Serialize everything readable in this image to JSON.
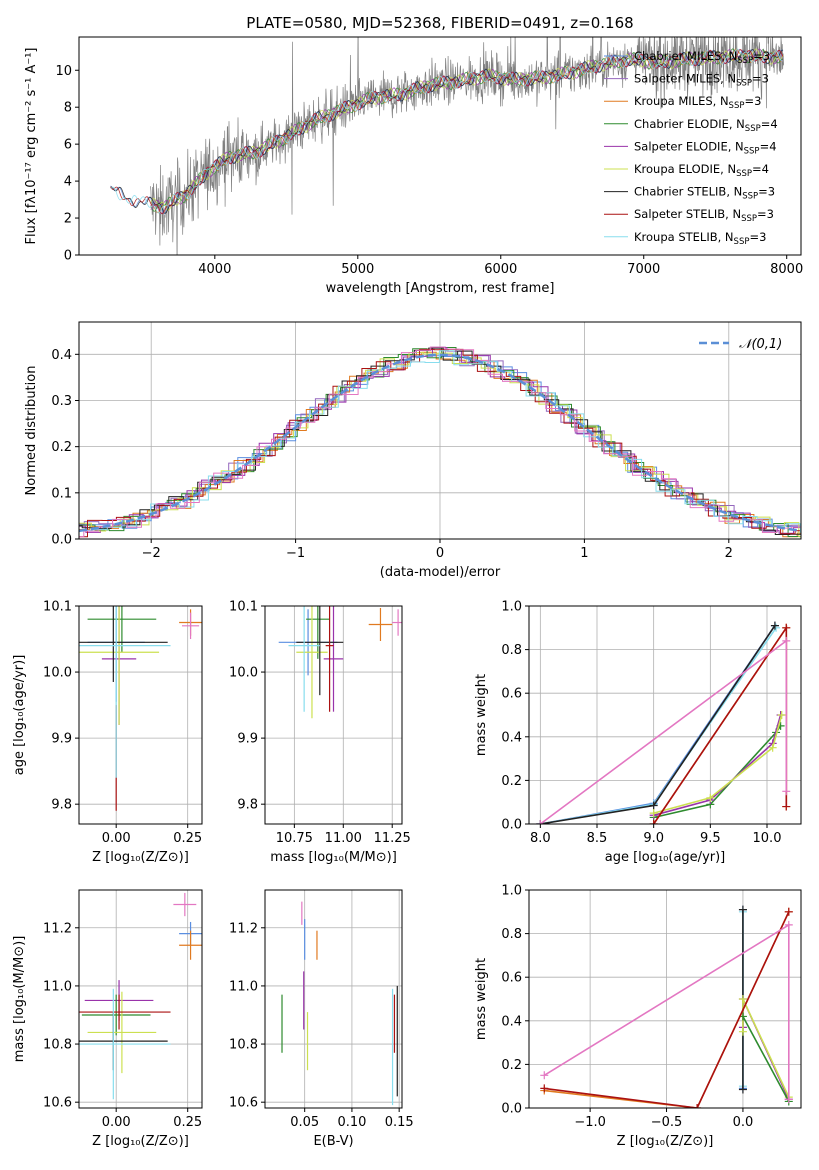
{
  "colors": {
    "chabrier_miles": "#5a8ee0",
    "salpeter_miles": "#9467bd",
    "kroupa_miles": "#e07a20",
    "chabrier_elodie": "#2e8b2e",
    "salpeter_elodie": "#9933aa",
    "kroupa_elodie": "#cce050",
    "chabrier_stelib": "#222222",
    "salpeter_stelib": "#aa1111",
    "kroupa_stelib": "#88ddee",
    "pink": "#e377c2",
    "data": "#808080",
    "normal": "#5b8fd6"
  },
  "legend_spectrum": [
    {
      "name": "Chabrier MILES, N",
      "sub": "SSP",
      "post": "=3",
      "color_key": "chabrier_miles"
    },
    {
      "name": "Salpeter MILES, N",
      "sub": "SSP",
      "post": "=3",
      "color_key": "salpeter_miles"
    },
    {
      "name": "Kroupa MILES, N",
      "sub": "SSP",
      "post": "=3",
      "color_key": "kroupa_miles"
    },
    {
      "name": "Chabrier ELODIE, N",
      "sub": "SSP",
      "post": "=4",
      "color_key": "chabrier_elodie"
    },
    {
      "name": "Salpeter ELODIE, N",
      "sub": "SSP",
      "post": "=4",
      "color_key": "salpeter_elodie"
    },
    {
      "name": "Kroupa ELODIE, N",
      "sub": "SSP",
      "post": "=4",
      "color_key": "kroupa_elodie"
    },
    {
      "name": "Chabrier STELIB, N",
      "sub": "SSP",
      "post": "=3",
      "color_key": "chabrier_stelib"
    },
    {
      "name": "Salpeter STELIB, N",
      "sub": "SSP",
      "post": "=3",
      "color_key": "salpeter_stelib"
    },
    {
      "name": "Kroupa STELIB, N",
      "sub": "SSP",
      "post": "=3",
      "color_key": "kroupa_stelib"
    }
  ],
  "chart_data": [
    {
      "id": "spectrum",
      "type": "line",
      "title": "PLATE=0580, MJD=52368, FIBERID=0491, z=0.168",
      "xlabel": "wavelength [Angstrom, rest frame]",
      "ylabel": "Flux [fλ10⁻¹⁷ erg cm⁻² s⁻¹ A⁻¹]",
      "xlim": [
        3050,
        8100
      ],
      "ylim": [
        0,
        11.8
      ],
      "xticks": [
        4000,
        5000,
        6000,
        7000,
        8000
      ],
      "yticks": [
        0,
        2,
        4,
        6,
        8,
        10
      ],
      "continuum": [
        [
          3270,
          3.5
        ],
        [
          3400,
          3.1
        ],
        [
          3500,
          2.8
        ],
        [
          3650,
          2.6
        ],
        [
          3800,
          3.3
        ],
        [
          3950,
          4.5
        ],
        [
          4100,
          5.3
        ],
        [
          4300,
          5.6
        ],
        [
          4500,
          6.4
        ],
        [
          4700,
          7.3
        ],
        [
          4900,
          7.9
        ],
        [
          5100,
          8.5
        ],
        [
          5300,
          8.7
        ],
        [
          5500,
          9.2
        ],
        [
          5700,
          9.4
        ],
        [
          5900,
          9.7
        ],
        [
          6100,
          9.5
        ],
        [
          6300,
          9.6
        ],
        [
          6500,
          9.9
        ],
        [
          6700,
          10.3
        ],
        [
          6900,
          10.6
        ],
        [
          7100,
          10.4
        ],
        [
          7300,
          10.6
        ],
        [
          7500,
          10.7
        ],
        [
          7700,
          10.8
        ],
        [
          7950,
          10.7
        ]
      ],
      "data_range": [
        3550,
        7980
      ]
    },
    {
      "id": "residuals",
      "type": "line",
      "xlabel": "(data-model)/error",
      "ylabel": "Normed distribution",
      "xlim": [
        -2.5,
        2.5
      ],
      "ylim": [
        0,
        0.47
      ],
      "xticks": [
        -2,
        -1,
        0,
        1,
        2
      ],
      "yticks": [
        0.0,
        0.1,
        0.2,
        0.3,
        0.4
      ],
      "legend": "𝒩(0,1)"
    },
    {
      "id": "age_vs_Z",
      "type": "scatter",
      "xlabel": "Z [log₁₀(Z/Z⊙)]",
      "ylabel": "age  [log₁₀(age/yr)]",
      "xlim": [
        -0.13,
        0.3
      ],
      "ylim": [
        9.77,
        10.1
      ],
      "xticks": [
        0.0,
        0.25
      ],
      "yticks": [
        9.8,
        9.9,
        10.0,
        10.1
      ],
      "points": [
        {
          "x": 0.0,
          "y": 10.045,
          "xe": 0.1,
          "ye": 0.09,
          "c": "chabrier_miles"
        },
        {
          "x": 0.26,
          "y": 10.075,
          "xe": 0.04,
          "ye": 0.02,
          "c": "kroupa_miles"
        },
        {
          "x": 0.01,
          "y": 10.02,
          "xe": 0.06,
          "ye": 0.1,
          "c": "salpeter_elodie"
        },
        {
          "x": 0.02,
          "y": 10.08,
          "xe": 0.12,
          "ye": 0.05,
          "c": "chabrier_elodie"
        },
        {
          "x": 0.01,
          "y": 10.03,
          "xe": 0.14,
          "ye": 0.11,
          "c": "kroupa_elodie"
        },
        {
          "x": -0.01,
          "y": 10.045,
          "xe": 0.19,
          "ye": 0.06,
          "c": "chabrier_stelib"
        },
        {
          "x": 0.0,
          "y": 9.87,
          "xe": 0.0,
          "ye": 0.08,
          "c": "salpeter_stelib"
        },
        {
          "x": 0.0,
          "y": 10.04,
          "xe": 0.19,
          "ye": 0.2,
          "c": "kroupa_stelib"
        },
        {
          "x": 0.26,
          "y": 10.07,
          "xe": 0.03,
          "ye": 0.02,
          "c": "pink"
        }
      ]
    },
    {
      "id": "age_vs_mass",
      "type": "scatter",
      "xlabel": "mass [log₁₀(M/M⊙)]",
      "xlim": [
        10.6,
        11.3
      ],
      "ylim": [
        9.77,
        10.1
      ],
      "xticks": [
        10.75,
        11.0,
        11.25
      ],
      "yticks": [
        9.8,
        9.9,
        10.0,
        10.1
      ],
      "points": [
        {
          "x": 10.82,
          "y": 10.045,
          "xe": 0.15,
          "ye": 0.05,
          "c": "chabrier_miles"
        },
        {
          "x": 11.19,
          "y": 10.072,
          "xe": 0.06,
          "ye": 0.025,
          "c": "kroupa_miles"
        },
        {
          "x": 10.95,
          "y": 10.02,
          "xe": 0.05,
          "ye": 0.08,
          "c": "salpeter_elodie"
        },
        {
          "x": 10.87,
          "y": 10.08,
          "xe": 0.06,
          "ye": 0.06,
          "c": "chabrier_elodie"
        },
        {
          "x": 10.84,
          "y": 10.03,
          "xe": 0.08,
          "ye": 0.1,
          "c": "kroupa_elodie"
        },
        {
          "x": 10.88,
          "y": 10.045,
          "xe": 0.12,
          "ye": 0.08,
          "c": "chabrier_stelib"
        },
        {
          "x": 10.93,
          "y": 10.04,
          "xe": 0.02,
          "ye": 0.1,
          "c": "salpeter_stelib"
        },
        {
          "x": 10.8,
          "y": 10.04,
          "xe": 0.08,
          "ye": 0.1,
          "c": "kroupa_stelib"
        },
        {
          "x": 11.28,
          "y": 10.075,
          "xe": 0.03,
          "ye": 0.02,
          "c": "pink"
        }
      ]
    },
    {
      "id": "mass_weight_vs_age",
      "type": "line",
      "xlabel": "age  [log₁₀(age/yr)]",
      "ylabel": "mass weight",
      "xlim": [
        7.9,
        10.3
      ],
      "ylim": [
        0,
        1.0
      ],
      "xticks": [
        8.0,
        8.5,
        9.0,
        9.5,
        10.0
      ],
      "yticks": [
        0.0,
        0.2,
        0.4,
        0.6,
        0.8,
        1.0
      ],
      "series": [
        {
          "c": "chabrier_miles",
          "pts": [
            [
              8.0,
              0.0
            ],
            [
              9.0,
              0.095
            ],
            [
              10.07,
              0.91
            ]
          ]
        },
        {
          "c": "kroupa_stelib",
          "pts": [
            [
              8.0,
              0.0
            ],
            [
              9.0,
              0.09
            ],
            [
              10.08,
              0.9
            ]
          ]
        },
        {
          "c": "chabrier_stelib",
          "pts": [
            [
              8.0,
              0.0
            ],
            [
              9.0,
              0.085
            ],
            [
              10.07,
              0.91
            ]
          ]
        },
        {
          "c": "chabrier_elodie",
          "pts": [
            [
              9.0,
              0.03
            ],
            [
              9.5,
              0.09
            ],
            [
              10.08,
              0.42
            ],
            [
              10.12,
              0.45
            ]
          ]
        },
        {
          "c": "salpeter_elodie",
          "pts": [
            [
              9.0,
              0.04
            ],
            [
              9.5,
              0.11
            ],
            [
              10.05,
              0.37
            ],
            [
              10.12,
              0.5
            ]
          ]
        },
        {
          "c": "kroupa_elodie",
          "pts": [
            [
              9.0,
              0.05
            ],
            [
              9.5,
              0.12
            ],
            [
              10.05,
              0.35
            ],
            [
              10.13,
              0.5
            ]
          ]
        },
        {
          "c": "kroupa_miles",
          "pts": [
            [
              9.0,
              0.0
            ],
            [
              10.17,
              0.9
            ],
            [
              10.17,
              0.08
            ]
          ]
        },
        {
          "c": "salpeter_stelib",
          "pts": [
            [
              9.0,
              0.0
            ],
            [
              10.17,
              0.9
            ],
            [
              10.17,
              0.08
            ]
          ]
        },
        {
          "c": "pink",
          "pts": [
            [
              8.0,
              0.0
            ],
            [
              10.17,
              0.84
            ],
            [
              10.17,
              0.15
            ]
          ]
        }
      ]
    },
    {
      "id": "mass_vs_Z",
      "type": "scatter",
      "xlabel": "Z [log₁₀(Z/Z⊙)]",
      "ylabel": "mass [log₁₀(M/M⊙)]",
      "xlim": [
        -0.13,
        0.3
      ],
      "ylim": [
        10.58,
        11.33
      ],
      "xticks": [
        0.0,
        0.25
      ],
      "yticks": [
        10.6,
        10.8,
        11.0,
        11.2
      ],
      "points": [
        {
          "x": 0.26,
          "y": 11.18,
          "xe": 0.04,
          "ye": 0.04,
          "c": "chabrier_miles"
        },
        {
          "x": 0.26,
          "y": 11.14,
          "xe": 0.04,
          "ye": 0.05,
          "c": "kroupa_miles"
        },
        {
          "x": 0.01,
          "y": 10.95,
          "xe": 0.12,
          "ye": 0.07,
          "c": "salpeter_elodie"
        },
        {
          "x": 0.0,
          "y": 10.9,
          "xe": 0.12,
          "ye": 0.07,
          "c": "chabrier_elodie"
        },
        {
          "x": 0.02,
          "y": 10.84,
          "xe": 0.12,
          "ye": 0.14,
          "c": "kroupa_elodie"
        },
        {
          "x": -0.01,
          "y": 10.81,
          "xe": 0.19,
          "ye": 0.1,
          "c": "chabrier_stelib"
        },
        {
          "x": 0.01,
          "y": 10.91,
          "xe": 0.18,
          "ye": 0.06,
          "c": "salpeter_stelib"
        },
        {
          "x": -0.01,
          "y": 10.8,
          "xe": 0.2,
          "ye": 0.19,
          "c": "kroupa_stelib"
        },
        {
          "x": 0.24,
          "y": 11.28,
          "xe": 0.04,
          "ye": 0.04,
          "c": "pink"
        }
      ]
    },
    {
      "id": "mass_vs_EBV",
      "type": "scatter",
      "xlabel": "E(B-V)",
      "xlim": [
        0.008,
        0.153
      ],
      "ylim": [
        10.58,
        11.33
      ],
      "xticks": [
        0.05,
        0.1,
        0.15
      ],
      "yticks": [
        10.6,
        10.8,
        11.0,
        11.2
      ],
      "points": [
        {
          "x": 0.05,
          "y": 11.16,
          "xe": 0,
          "ye": 0.07,
          "c": "chabrier_miles"
        },
        {
          "x": 0.063,
          "y": 11.14,
          "xe": 0,
          "ye": 0.05,
          "c": "kroupa_miles"
        },
        {
          "x": 0.049,
          "y": 10.95,
          "xe": 0,
          "ye": 0.1,
          "c": "salpeter_elodie"
        },
        {
          "x": 0.026,
          "y": 10.87,
          "xe": 0,
          "ye": 0.1,
          "c": "chabrier_elodie"
        },
        {
          "x": 0.053,
          "y": 10.81,
          "xe": 0,
          "ye": 0.1,
          "c": "kroupa_elodie"
        },
        {
          "x": 0.148,
          "y": 10.81,
          "xe": 0,
          "ye": 0.19,
          "c": "chabrier_stelib"
        },
        {
          "x": 0.145,
          "y": 10.87,
          "xe": 0,
          "ye": 0.1,
          "c": "salpeter_stelib"
        },
        {
          "x": 0.143,
          "y": 10.79,
          "xe": 0,
          "ye": 0.2,
          "c": "kroupa_stelib"
        },
        {
          "x": 0.047,
          "y": 11.25,
          "xe": 0,
          "ye": 0.04,
          "c": "pink"
        }
      ]
    },
    {
      "id": "mass_weight_vs_Z",
      "type": "line",
      "xlabel": "Z [log₁₀(Z/Z⊙)]",
      "ylabel": "mass weight",
      "xlim": [
        -1.4,
        0.38
      ],
      "ylim": [
        0,
        1.0
      ],
      "xticks": [
        -1.0,
        -0.5,
        0.0
      ],
      "yticks": [
        0.0,
        0.2,
        0.4,
        0.6,
        0.8,
        1.0
      ],
      "series": [
        {
          "c": "chabrier_miles",
          "pts": [
            [
              0.0,
              0.91
            ],
            [
              0.0,
              0.09
            ]
          ]
        },
        {
          "c": "kroupa_stelib",
          "pts": [
            [
              0.0,
              0.9
            ],
            [
              0.0,
              0.1
            ]
          ]
        },
        {
          "c": "chabrier_stelib",
          "pts": [
            [
              0.0,
              0.91
            ],
            [
              0.0,
              0.085
            ]
          ]
        },
        {
          "c": "salpeter_elodie",
          "pts": [
            [
              0.0,
              0.37
            ],
            [
              0.0,
              0.5
            ],
            [
              0.3,
              0.04
            ]
          ]
        },
        {
          "c": "kroupa_elodie",
          "pts": [
            [
              0.0,
              0.35
            ],
            [
              0.0,
              0.5
            ],
            [
              0.3,
              0.05
            ]
          ]
        },
        {
          "c": "chabrier_elodie",
          "pts": [
            [
              0.0,
              0.42
            ],
            [
              0.3,
              0.03
            ]
          ]
        },
        {
          "c": "kroupa_miles",
          "pts": [
            [
              -1.3,
              0.08
            ],
            [
              -0.3,
              0.0
            ],
            [
              0.3,
              0.9
            ]
          ]
        },
        {
          "c": "salpeter_stelib",
          "pts": [
            [
              -1.3,
              0.09
            ],
            [
              -0.3,
              0.0
            ],
            [
              0.3,
              0.9
            ]
          ]
        },
        {
          "c": "pink",
          "pts": [
            [
              -1.3,
              0.15
            ],
            [
              0.3,
              0.84
            ],
            [
              0.3,
              0.04
            ]
          ]
        }
      ]
    }
  ]
}
